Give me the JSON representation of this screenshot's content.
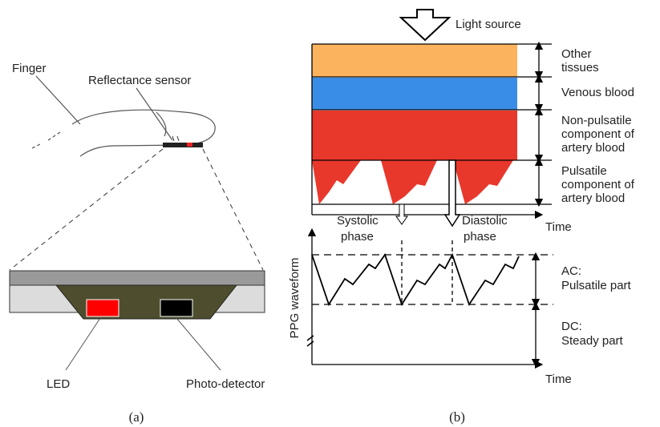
{
  "panel_a": {
    "finger": "Finger",
    "sensor": "Reflectance sensor",
    "led": "LED",
    "detector": "Photo-detector",
    "caption": "(a)"
  },
  "panel_b": {
    "light_source": "Light source",
    "layers": [
      {
        "lines": [
          "Other",
          "tissues"
        ]
      },
      {
        "lines": [
          "Venous blood"
        ]
      },
      {
        "lines": [
          "Non-pulsatile",
          "component of",
          "artery blood"
        ]
      },
      {
        "lines": [
          "Pulsatile",
          "component of",
          "artery blood"
        ]
      }
    ],
    "time_top": "Time",
    "systolic": [
      "Systolic",
      "phase"
    ],
    "diastolic": [
      "Diastolic",
      "phase"
    ],
    "y_label": "PPG waveform",
    "ac": [
      "AC:",
      "Pulsatile part"
    ],
    "dc": [
      "DC:",
      "Steady part"
    ],
    "time_bottom": "Time",
    "caption": "(b)"
  }
}
